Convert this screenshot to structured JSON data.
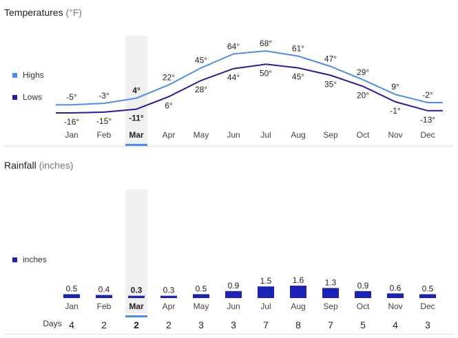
{
  "temperature": {
    "title": "Temperatures",
    "unit": "(°F)",
    "legend": {
      "highs": "Highs",
      "lows": "Lows"
    },
    "colors": {
      "highs": "#4a8df0",
      "lows": "#2a1a9c"
    }
  },
  "rainfall": {
    "title": "Rainfall",
    "unit": "(inches)",
    "legend": {
      "inches": "inches"
    },
    "color": "#1a22b8",
    "days_label": "Days"
  },
  "selected_index": 2,
  "selected_color": "#4a8df0",
  "chart_data": [
    {
      "type": "line",
      "title": "Temperatures",
      "categories": [
        "Jan",
        "Feb",
        "Mar",
        "Apr",
        "May",
        "Jun",
        "Jul",
        "Aug",
        "Sep",
        "Oct",
        "Nov",
        "Dec"
      ],
      "series": [
        {
          "name": "Highs",
          "values": [
            -5,
            -3,
            4,
            22,
            45,
            64,
            68,
            61,
            47,
            29,
            9,
            -2
          ],
          "labels": [
            "-5°",
            "-3°",
            "4°",
            "22°",
            "45°",
            "64°",
            "68°",
            "61°",
            "47°",
            "29°",
            "9°",
            "-2°"
          ]
        },
        {
          "name": "Lows",
          "values": [
            -16,
            -15,
            -11,
            6,
            28,
            44,
            50,
            45,
            35,
            20,
            -1,
            -13
          ],
          "labels": [
            "-16°",
            "-15°",
            "-11°",
            "6°",
            "28°",
            "44°",
            "50°",
            "45°",
            "35°",
            "20°",
            "-1°",
            "-13°"
          ]
        }
      ],
      "legend": "left",
      "grid": false
    },
    {
      "type": "bar",
      "title": "Rainfall",
      "categories": [
        "Jan",
        "Feb",
        "Mar",
        "Apr",
        "May",
        "Jun",
        "Jul",
        "Aug",
        "Sep",
        "Oct",
        "Nov",
        "Dec"
      ],
      "series": [
        {
          "name": "inches",
          "values": [
            0.5,
            0.4,
            0.3,
            0.3,
            0.5,
            0.9,
            1.5,
            1.6,
            1.3,
            0.9,
            0.6,
            0.5
          ],
          "labels": [
            "0.5",
            "0.4",
            "0.3",
            "0.3",
            "0.5",
            "0.9",
            "1.5",
            "1.6",
            "1.3",
            "0.9",
            "0.6",
            "0.5"
          ]
        }
      ],
      "days": [
        "4",
        "2",
        "2",
        "2",
        "3",
        "3",
        "7",
        "8",
        "7",
        "5",
        "4",
        "3"
      ],
      "legend": "left",
      "grid": false
    }
  ]
}
